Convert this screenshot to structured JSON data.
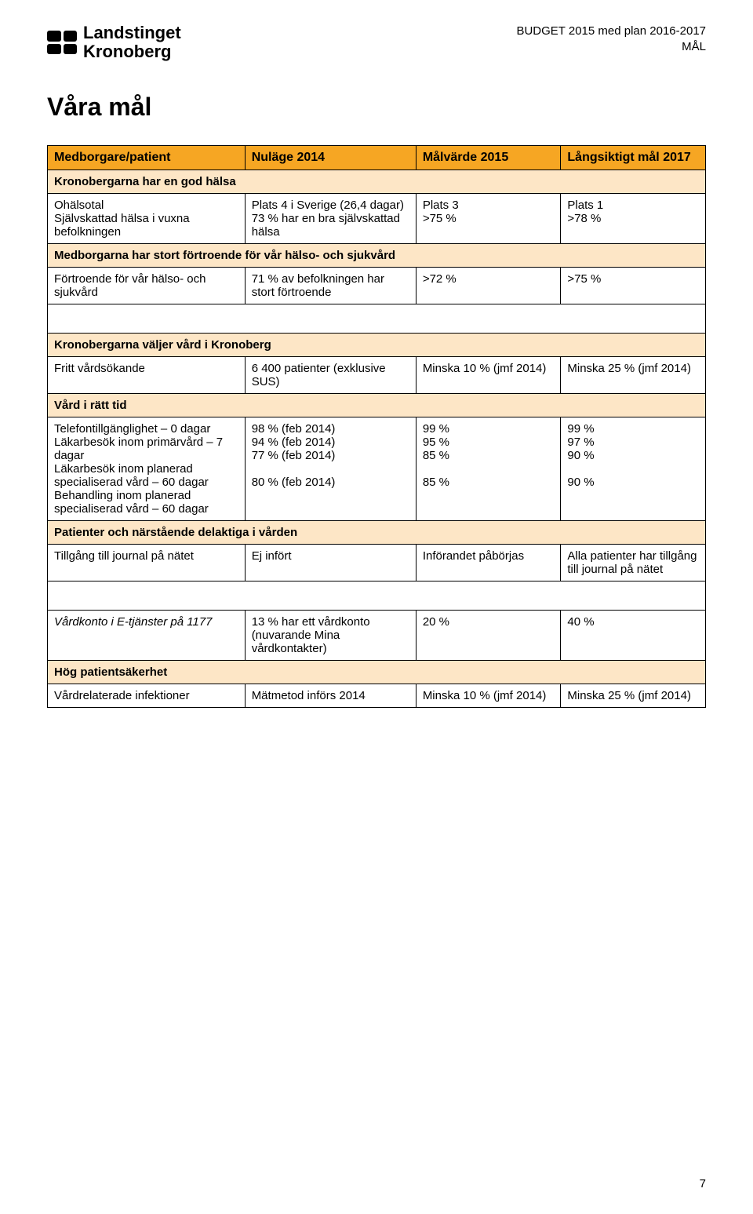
{
  "header": {
    "logo_line1": "Landstinget",
    "logo_line2": "Kronoberg",
    "right_line1": "BUDGET 2015 med plan 2016-2017",
    "right_line2": "MÅL"
  },
  "title": "Våra mål",
  "page_number": "7",
  "colors": {
    "header_bg": "#f6a623",
    "section_bg": "#fde6c6",
    "border": "#000000",
    "text": "#000000",
    "page_bg": "#ffffff"
  },
  "table": {
    "headers": [
      "Medborgare/patient",
      "Nuläge 2014",
      "Målvärde 2015",
      "Långsiktigt mål 2017"
    ],
    "sections": [
      {
        "title": "Kronobergarna har en god hälsa"
      },
      {
        "row": {
          "label": "Ohälsotal\nSjälvskattad hälsa i vuxna befolkningen",
          "c2": "Plats 4 i Sverige (26,4 dagar)\n73 % har en bra självskattad hälsa",
          "c3": "Plats 3\n>75 %",
          "c4": "Plats 1\n>78 %"
        }
      },
      {
        "title": "Medborgarna har stort förtroende för vår hälso- och sjukvård"
      },
      {
        "row": {
          "label": "Förtroende för vår hälso- och sjukvård",
          "c2": "71 % av befolkningen har stort förtroende",
          "c3": ">72 %",
          "c4": ">75 %"
        }
      },
      {
        "spacer": true
      },
      {
        "title": "Kronobergarna väljer vård i Kronoberg"
      },
      {
        "row": {
          "label": "Fritt vårdsökande",
          "c2": "6 400 patienter (exklusive SUS)",
          "c3": "Minska 10 % (jmf 2014)",
          "c4": "Minska 25 % (jmf 2014)"
        }
      },
      {
        "title": "Vård i rätt tid"
      },
      {
        "row": {
          "label": "Telefontillgänglighet – 0 dagar\nLäkarbesök inom primärvård – 7 dagar\nLäkarbesök inom planerad specialiserad vård – 60 dagar\nBehandling inom planerad specialiserad vård – 60 dagar",
          "c2": "98 % (feb 2014)\n94 % (feb 2014)\n77 % (feb 2014)\n\n80 % (feb 2014)",
          "c3": "99 %\n95 %\n85 %\n\n85 %",
          "c4": "99 %\n97 %\n90 %\n\n90 %"
        }
      },
      {
        "title": "Patienter och närstående delaktiga i vården"
      },
      {
        "row": {
          "label": "Tillgång till journal på nätet",
          "c2": "Ej infört",
          "c3": "Införandet påbörjas",
          "c4": "Alla patienter har tillgång till journal på nätet"
        }
      },
      {
        "spacer": true
      },
      {
        "row": {
          "label_italic": true,
          "label": "Vårdkonto i E-tjänster på 1177",
          "c2": "13 % har ett vårdkonto (nuvarande Mina vårdkontakter)",
          "c3": "20 %",
          "c4": "40 %"
        }
      },
      {
        "title": "Hög patientsäkerhet"
      },
      {
        "row": {
          "label": "Vårdrelaterade infektioner",
          "c2": "Mätmetod införs 2014",
          "c3": "Minska 10 % (jmf 2014)",
          "c4": "Minska 25 % (jmf 2014)"
        }
      }
    ]
  }
}
